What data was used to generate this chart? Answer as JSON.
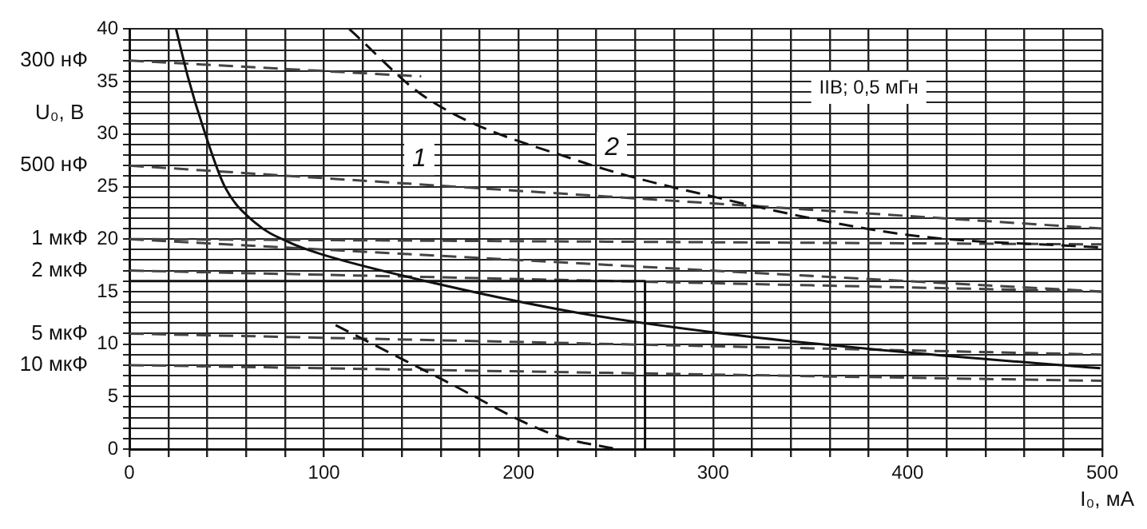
{
  "chart_data": {
    "type": "line",
    "xlabel": "I₀, мА",
    "ylabel": "U₀, В",
    "xlim": [
      0,
      500
    ],
    "ylim": [
      0,
      40
    ],
    "xticks": [
      0,
      {
        "value": 20,
        "label": null
      },
      {
        "value": 40,
        "label": null
      },
      {
        "value": 60,
        "label": null
      },
      {
        "value": 80,
        "label": null
      },
      100,
      {
        "value": 120,
        "label": null
      },
      {
        "value": 140,
        "label": null
      },
      {
        "value": 160,
        "label": null
      },
      {
        "value": 180,
        "label": null
      },
      200,
      {
        "value": 220,
        "label": null
      },
      {
        "value": 240,
        "label": null
      },
      {
        "value": 260,
        "label": null
      },
      {
        "value": 280,
        "label": null
      },
      300,
      {
        "value": 320,
        "label": null
      },
      {
        "value": 340,
        "label": null
      },
      {
        "value": 360,
        "label": null
      },
      {
        "value": 380,
        "label": null
      },
      400,
      {
        "value": 420,
        "label": null
      },
      {
        "value": 440,
        "label": null
      },
      {
        "value": 460,
        "label": null
      },
      {
        "value": 480,
        "label": null
      },
      500
    ],
    "yticks": [
      0,
      {
        "value": 1,
        "label": null
      },
      {
        "value": 2,
        "label": null
      },
      {
        "value": 3,
        "label": null
      },
      {
        "value": 4,
        "label": null
      },
      5,
      {
        "value": 6,
        "label": null
      },
      {
        "value": 7,
        "label": null
      },
      {
        "value": 8,
        "label": null
      },
      {
        "value": 9,
        "label": null
      },
      10,
      {
        "value": 11,
        "label": null
      },
      {
        "value": 12,
        "label": null
      },
      {
        "value": 13,
        "label": null
      },
      {
        "value": 14,
        "label": null
      },
      15,
      {
        "value": 16,
        "label": null
      },
      {
        "value": 17,
        "label": null
      },
      {
        "value": 18,
        "label": null
      },
      {
        "value": 19,
        "label": null
      },
      20,
      {
        "value": 21,
        "label": null
      },
      {
        "value": 22,
        "label": null
      },
      {
        "value": 23,
        "label": null
      },
      {
        "value": 24,
        "label": null
      },
      25,
      {
        "value": 26,
        "label": null
      },
      {
        "value": 27,
        "label": null
      },
      {
        "value": 28,
        "label": null
      },
      {
        "value": 29,
        "label": null
      },
      30,
      {
        "value": 31,
        "label": null
      },
      {
        "value": 32,
        "label": null
      },
      {
        "value": 33,
        "label": null
      },
      {
        "value": 34,
        "label": null
      },
      35,
      {
        "value": 36,
        "label": null
      },
      {
        "value": 37,
        "label": null
      },
      {
        "value": 38,
        "label": null
      },
      {
        "value": 39,
        "label": null
      },
      40
    ],
    "grid": true,
    "legend": false,
    "marker": "none",
    "series": [
      {
        "color": "#111111",
        "line_style": "solid",
        "x": [
          24,
          30,
          39,
          49,
          65,
          82,
          98,
          150,
          230,
          301,
          400,
          499
        ],
        "values": [
          40,
          35.5,
          30,
          25,
          21.5,
          19.7,
          18.6,
          16.1,
          13,
          11.1,
          9.2,
          7.7
        ]
      },
      {
        "color": "#111111",
        "line_style": "dashed",
        "x": [
          113,
          153,
          230,
          301,
          400,
          499
        ],
        "values": [
          40,
          33.4,
          27.5,
          24,
          20.4,
          19.2
        ]
      },
      {
        "color": "#111111",
        "line_style": "dashed",
        "x": [
          106,
          158,
          219,
          250
        ],
        "values": [
          11.8,
          6.9,
          1.3,
          0
        ]
      },
      {
        "color": "#111111",
        "line_style": "solid",
        "x": [
          0,
          265,
          265
        ],
        "values": [
          16,
          16,
          0
        ]
      },
      {
        "color": "#444444",
        "line_style": "dashed",
        "x": [
          0,
          150
        ],
        "values": [
          37,
          35.5
        ]
      },
      {
        "color": "#444444",
        "line_style": "dashed",
        "x": [
          0,
          500
        ],
        "values": [
          27,
          21
        ]
      },
      {
        "color": "#444444",
        "line_style": "dashed",
        "x": [
          0,
          500
        ],
        "values": [
          20,
          19.5
        ]
      },
      {
        "color": "#444444",
        "line_style": "dashed",
        "x": [
          0,
          500
        ],
        "values": [
          20,
          15
        ]
      },
      {
        "color": "#444444",
        "line_style": "dashed",
        "x": [
          0,
          500
        ],
        "values": [
          17,
          15
        ]
      },
      {
        "color": "#444444",
        "line_style": "dashed",
        "x": [
          0,
          500
        ],
        "values": [
          11,
          9
        ]
      },
      {
        "color": "#444444",
        "line_style": "dashed",
        "x": [
          0,
          500
        ],
        "values": [
          8,
          6.5
        ]
      }
    ],
    "annotations": [
      {
        "text": "1",
        "x": 149,
        "y": 27.6
      },
      {
        "text": "2",
        "x": 248,
        "y": 28.7
      },
      "IIB; 0,5 мГн",
      {
        "text": "300 нФ",
        "x": 0,
        "y": 37
      },
      {
        "text": "500 нФ",
        "x": 0,
        "y": 27
      },
      {
        "text": "1 мкФ",
        "x": 0,
        "y": 20
      },
      {
        "text": "2 мкФ",
        "x": 0,
        "y": 17
      },
      {
        "text": "5 мкФ",
        "x": 0,
        "y": 11
      },
      {
        "text": "10 мкФ",
        "x": 0,
        "y": 8
      }
    ]
  }
}
